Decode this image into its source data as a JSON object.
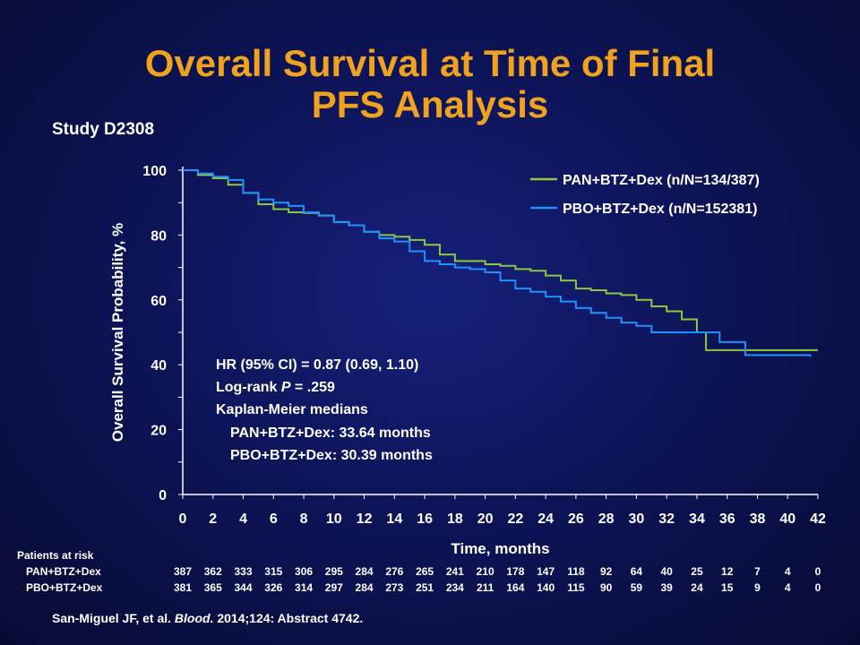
{
  "slide": {
    "title_line1": "Overall Survival at Time of Final",
    "title_line2": "PFS Analysis",
    "study": "Study D2308",
    "citation_authors": "San-Miguel JF, et al. ",
    "citation_journal": "Blood.",
    "citation_rest": " 2014;124: Abstract 4742."
  },
  "colors": {
    "title": "#f0a21e",
    "pan": "#8dc63f",
    "pbo": "#1e90ff"
  },
  "stats": {
    "line1": "HR (95% CI) = 0.87 (0.69, 1.10)",
    "line2_prefix": "Log-rank ",
    "line2_p": "P",
    "line2_suffix": " = .259",
    "line3": "Kaplan-Meier medians",
    "line4": "PAN+BTZ+Dex:  33.64 months",
    "line5": "PBO+BTZ+Dex:  30.39 months"
  },
  "risk_table": {
    "title": "Patients at risk",
    "rows": [
      {
        "label": "PAN+BTZ+Dex",
        "values": [
          "387",
          "362",
          "333",
          "315",
          "306",
          "295",
          "284",
          "276",
          "265",
          "241",
          "210",
          "178",
          "147",
          "118",
          "92",
          "64",
          "40",
          "25",
          "12",
          "7",
          "4",
          "0"
        ]
      },
      {
        "label": "PBO+BTZ+Dex",
        "values": [
          "381",
          "365",
          "344",
          "326",
          "314",
          "297",
          "284",
          "273",
          "251",
          "234",
          "211",
          "164",
          "140",
          "115",
          "90",
          "59",
          "39",
          "24",
          "15",
          "9",
          "4",
          "0"
        ]
      }
    ]
  },
  "chart_data": {
    "type": "line",
    "step": true,
    "xlabel": "Time, months",
    "ylabel": "Overall Survival Probability, %",
    "xlim": [
      0,
      42
    ],
    "ylim": [
      0,
      100
    ],
    "x_ticks": [
      "0",
      "2",
      "4",
      "6",
      "8",
      "10",
      "12",
      "14",
      "16",
      "18",
      "20",
      "22",
      "24",
      "26",
      "28",
      "30",
      "32",
      "34",
      "36",
      "38",
      "40",
      "42"
    ],
    "y_ticks": [
      "0",
      "20",
      "40",
      "60",
      "80",
      "100"
    ],
    "legend_position": "top-right",
    "series": [
      {
        "name": "PAN+BTZ+Dex (n/N=134/387)",
        "color": "#8dc63f",
        "points": [
          [
            0,
            100
          ],
          [
            1,
            98.5
          ],
          [
            2,
            97.5
          ],
          [
            3,
            95.5
          ],
          [
            4,
            93
          ],
          [
            5,
            89.5
          ],
          [
            6,
            88
          ],
          [
            7,
            87
          ],
          [
            8,
            86.8
          ],
          [
            9,
            86
          ],
          [
            10,
            84
          ],
          [
            11,
            83
          ],
          [
            12,
            81
          ],
          [
            13,
            80
          ],
          [
            14,
            79.5
          ],
          [
            15,
            78.5
          ],
          [
            16,
            77
          ],
          [
            17,
            74
          ],
          [
            18,
            72
          ],
          [
            19,
            72
          ],
          [
            20,
            71
          ],
          [
            21,
            70.5
          ],
          [
            22,
            69.5
          ],
          [
            23,
            69
          ],
          [
            24,
            67.5
          ],
          [
            25,
            66
          ],
          [
            26,
            63.5
          ],
          [
            27,
            63
          ],
          [
            28,
            62
          ],
          [
            29,
            61.5
          ],
          [
            30,
            60
          ],
          [
            31,
            58
          ],
          [
            32,
            56.5
          ],
          [
            33,
            54
          ],
          [
            34,
            50
          ],
          [
            34.6,
            44.5
          ],
          [
            38,
            44.5
          ],
          [
            42,
            44.5
          ]
        ]
      },
      {
        "name": "PBO+BTZ+Dex (n/N=152381)",
        "color": "#1e90ff",
        "points": [
          [
            0,
            100
          ],
          [
            1,
            99
          ],
          [
            2,
            98
          ],
          [
            3,
            97
          ],
          [
            4,
            93
          ],
          [
            5,
            91
          ],
          [
            6,
            90
          ],
          [
            7,
            89
          ],
          [
            8,
            87
          ],
          [
            9,
            86
          ],
          [
            10,
            84
          ],
          [
            11,
            83
          ],
          [
            12,
            81
          ],
          [
            13,
            79
          ],
          [
            14,
            78
          ],
          [
            15,
            75
          ],
          [
            16,
            72
          ],
          [
            17,
            71
          ],
          [
            18,
            70
          ],
          [
            19,
            69.5
          ],
          [
            20,
            68.5
          ],
          [
            21,
            66
          ],
          [
            22,
            63.5
          ],
          [
            23,
            62.5
          ],
          [
            24,
            61
          ],
          [
            25,
            59.5
          ],
          [
            26,
            57.5
          ],
          [
            27,
            56
          ],
          [
            28,
            54.5
          ],
          [
            29,
            53
          ],
          [
            30,
            52
          ],
          [
            31,
            50
          ],
          [
            34,
            50
          ],
          [
            35,
            50
          ],
          [
            35.5,
            47
          ],
          [
            37.2,
            43
          ],
          [
            40,
            43
          ],
          [
            41.5,
            42.5
          ]
        ]
      }
    ]
  }
}
